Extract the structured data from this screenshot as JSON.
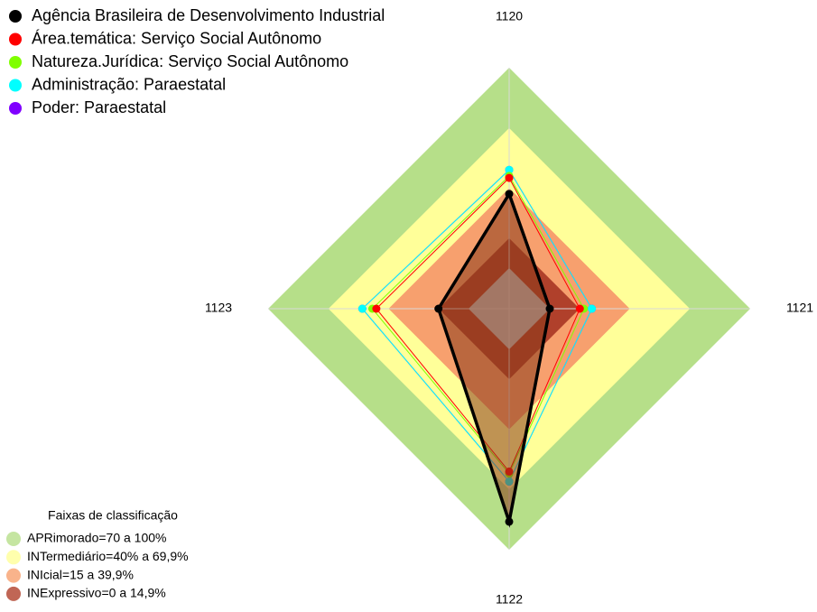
{
  "chart_data": {
    "type": "radar",
    "categories": [
      "1120",
      "1121",
      "1122",
      "1123"
    ],
    "rlim": [
      0,
      100
    ],
    "series": [
      {
        "name": "Agência Brasileira de Desenvolvimento Industrial",
        "color": "#000000",
        "fill": "#8b3a1a",
        "values": [
          37,
          0,
          86,
          15
        ]
      },
      {
        "name": "Área.temática: Serviço Social Autônomo",
        "color": "#ff0000",
        "values": [
          45,
          15,
          61,
          46
        ]
      },
      {
        "name": "Natureza.Jurídica: Serviço Social Autônomo",
        "color": "#80ff00",
        "values": [
          46,
          17,
          62,
          48
        ]
      },
      {
        "name": "Administração: Paraestatal",
        "color": "#00ffff",
        "values": [
          49,
          21,
          66,
          53
        ]
      },
      {
        "name": "Poder: Paraestatal",
        "color": "#8000ff",
        "values": [
          49,
          21,
          66,
          53
        ]
      }
    ],
    "bands_title": "Faixas de classificação",
    "bands": [
      {
        "label": "APRimorado=70 a 100%",
        "min": 70,
        "max": 100,
        "color": "#b6df89"
      },
      {
        "label": "INTermediário=40% a 69,9%",
        "min": 40,
        "max": 69.9,
        "color": "#ffff99"
      },
      {
        "label": "INIcial=15 a 39,9%",
        "min": 15,
        "max": 39.9,
        "color": "#f7a06e"
      },
      {
        "label": "INExpressivo=0 a 14,9%",
        "min": 0,
        "max": 14.9,
        "color": "#b0402b"
      }
    ]
  }
}
